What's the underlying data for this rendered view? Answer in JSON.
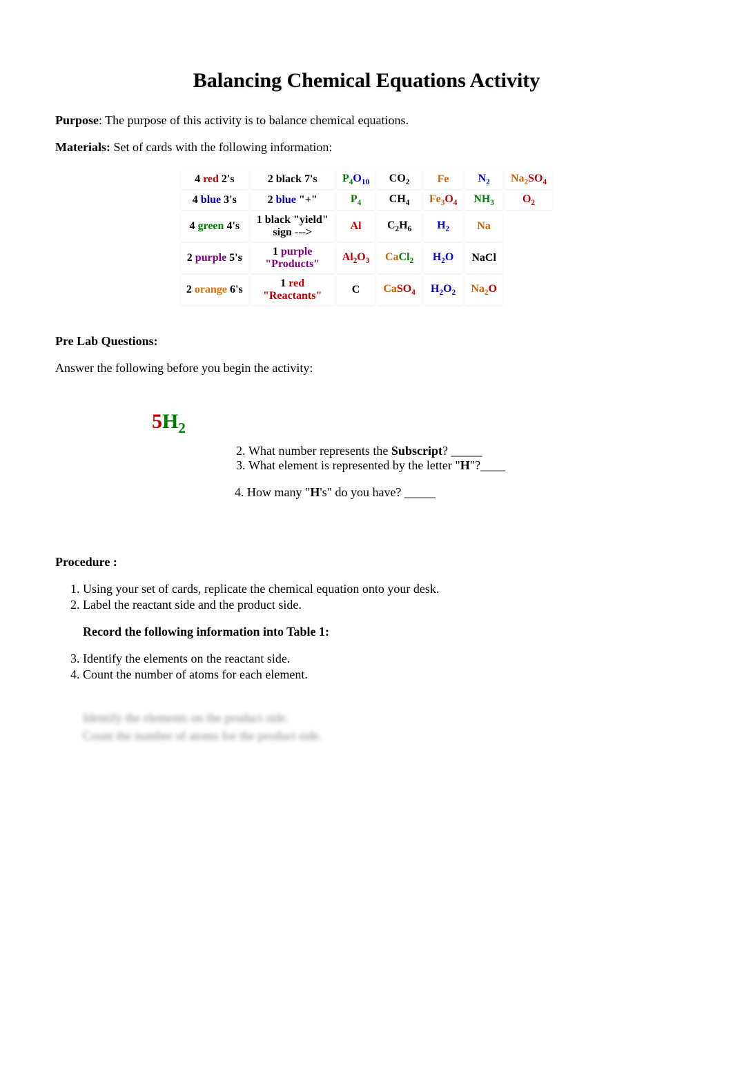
{
  "title": "Balancing Chemical Equations Activity",
  "purpose_label": "Purpose",
  "purpose_text": ": The purpose of this activity is to balance chemical equations.",
  "materials_label": "Materials:",
  "materials_text": "  Set of cards with the following information:",
  "colors": {
    "red": "#c00000",
    "blue": "#0000cc",
    "green": "#008000",
    "purple": "#800080",
    "orange": "#e07000",
    "black": "#000000",
    "darkorange": "#d06000"
  },
  "materials_table": {
    "rows": [
      [
        {
          "pre": "4 ",
          "mid": "red",
          "post": " 2's",
          "color": "#c00000"
        },
        {
          "text": "2 black 7's",
          "color": "#000000"
        },
        {
          "formula": [
            {
              "t": "P",
              "c": "#008000"
            },
            {
              "s": "4",
              "c": "#008000"
            },
            {
              "t": "O",
              "c": "#0000cc"
            },
            {
              "s": "10",
              "c": "#0000cc"
            }
          ]
        },
        {
          "formula": [
            {
              "t": "CO",
              "c": "#000000"
            },
            {
              "s": "2",
              "c": "#000000"
            }
          ]
        },
        {
          "formula": [
            {
              "t": "Fe",
              "c": "#d06000"
            }
          ]
        },
        {
          "formula": [
            {
              "t": "N",
              "c": "#0000cc"
            },
            {
              "s": "2",
              "c": "#0000cc"
            }
          ]
        },
        {
          "formula": [
            {
              "t": "Na",
              "c": "#d06000"
            },
            {
              "s": "2",
              "c": "#d06000"
            },
            {
              "t": "SO",
              "c": "#c00000"
            },
            {
              "s": "4",
              "c": "#c00000"
            }
          ]
        }
      ],
      [
        {
          "pre": "4 ",
          "mid": "blue",
          "post": " 3's",
          "color": "#0000cc"
        },
        {
          "pre": "2 ",
          "mid": "blue",
          "post": " \"+\"",
          "color": "#0000cc"
        },
        {
          "formula": [
            {
              "t": "P",
              "c": "#008000"
            },
            {
              "s": "4",
              "c": "#008000"
            }
          ]
        },
        {
          "formula": [
            {
              "t": "CH",
              "c": "#000000"
            },
            {
              "s": "4",
              "c": "#000000"
            }
          ]
        },
        {
          "formula": [
            {
              "t": "Fe",
              "c": "#d06000"
            },
            {
              "s": "3",
              "c": "#d06000"
            },
            {
              "t": "O",
              "c": "#c00000"
            },
            {
              "s": "4",
              "c": "#c00000"
            }
          ]
        },
        {
          "formula": [
            {
              "t": "NH",
              "c": "#008000"
            },
            {
              "s": "3",
              "c": "#008000"
            }
          ]
        },
        {
          "formula": [
            {
              "t": "O",
              "c": "#c00000"
            },
            {
              "s": "2",
              "c": "#c00000"
            }
          ]
        }
      ],
      [
        {
          "pre": "4 ",
          "mid": "green",
          "post": " 4's",
          "color": "#008000"
        },
        {
          "twoline": [
            "1 black \"yield\"",
            "sign --->"
          ],
          "color": "#000000"
        },
        {
          "formula": [
            {
              "t": "Al",
              "c": "#c00000"
            }
          ]
        },
        {
          "formula": [
            {
              "t": "C",
              "c": "#000000"
            },
            {
              "s": "2",
              "c": "#000000"
            },
            {
              "t": "H",
              "c": "#000000"
            },
            {
              "s": "6",
              "c": "#000000"
            }
          ]
        },
        {
          "formula": [
            {
              "t": "H",
              "c": "#0000cc"
            },
            {
              "s": "2",
              "c": "#0000cc"
            }
          ]
        },
        {
          "formula": [
            {
              "t": "Na",
              "c": "#d06000"
            }
          ]
        },
        {
          "empty": true
        }
      ],
      [
        {
          "pre": "2 ",
          "mid": "purple",
          "post": " 5's",
          "color": "#800080"
        },
        {
          "twoline_colored": [
            {
              "t": "1 ",
              "c": "#000000"
            },
            {
              "t": "purple",
              "c": "#800080"
            }
          ],
          "line2": "\"Products\"",
          "line2c": "#800080"
        },
        {
          "formula": [
            {
              "t": "Al",
              "c": "#c00000"
            },
            {
              "s": "2",
              "c": "#c00000"
            },
            {
              "t": "O",
              "c": "#c00000"
            },
            {
              "s": "3",
              "c": "#c00000"
            }
          ]
        },
        {
          "formula": [
            {
              "t": "Ca",
              "c": "#d06000"
            },
            {
              "t": "Cl",
              "c": "#008000"
            },
            {
              "s": "2",
              "c": "#008000"
            }
          ]
        },
        {
          "formula": [
            {
              "t": "H",
              "c": "#0000cc"
            },
            {
              "s": "2",
              "c": "#0000cc"
            },
            {
              "t": "O",
              "c": "#0000cc"
            }
          ]
        },
        {
          "formula": [
            {
              "t": "NaCl",
              "c": "#000000"
            }
          ]
        },
        {
          "empty": true
        }
      ],
      [
        {
          "pre": "2 ",
          "mid": "orange",
          "post": " 6's",
          "color": "#e07000"
        },
        {
          "twoline_colored": [
            {
              "t": "1 ",
              "c": "#000000"
            },
            {
              "t": "red",
              "c": "#c00000"
            }
          ],
          "line2": "\"Reactants\"",
          "line2c": "#c00000"
        },
        {
          "formula": [
            {
              "t": "C",
              "c": "#000000"
            }
          ]
        },
        {
          "formula": [
            {
              "t": "Ca",
              "c": "#d06000"
            },
            {
              "t": "SO",
              "c": "#c00000"
            },
            {
              "s": "4",
              "c": "#c00000"
            }
          ]
        },
        {
          "formula": [
            {
              "t": "H",
              "c": "#0000cc"
            },
            {
              "s": "2",
              "c": "#0000cc"
            },
            {
              "t": "O",
              "c": "#0000cc"
            },
            {
              "s": "2",
              "c": "#0000cc"
            }
          ]
        },
        {
          "formula": [
            {
              "t": "Na",
              "c": "#d06000"
            },
            {
              "s": "2",
              "c": "#d06000"
            },
            {
              "t": "O",
              "c": "#c00000"
            }
          ]
        },
        {
          "empty": true
        }
      ]
    ]
  },
  "prelab_heading": "Pre Lab Questions:",
  "prelab_intro": "Answer the following before you begin the activity:",
  "fiveh2": {
    "five": "5",
    "h": "H",
    "sub": "2",
    "five_color": "#c00000",
    "h_color": "#008000",
    "sub_color": "#008000"
  },
  "q2_pre": "What number represents the ",
  "q2_bold": "Subscript",
  "q2_post": "? _____",
  "q3_pre": "What element is represented by the letter \"",
  "q3_bold": "H",
  "q3_post": "\"?____",
  "q4_pre": "4. How many \"",
  "q4_bold": "H",
  "q4_post": "'s\" do you have? _____",
  "procedure_heading": "Procedure :",
  "proc1": "Using your set of cards, replicate the chemical equation onto your desk.",
  "proc2": "Label the reactant side and the product side.",
  "record_line": "Record the following information into Table 1:",
  "proc3": "Identify the elements on the reactant side.",
  "proc4": "Count the number of atoms for each element.",
  "blurred1": "Identify the elements on the product side.",
  "blurred2": "Count the number of atoms for the product side."
}
